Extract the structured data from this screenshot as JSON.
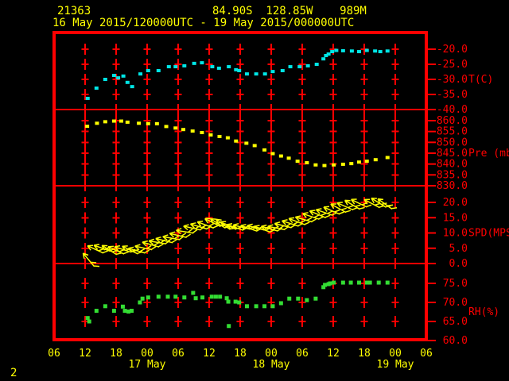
{
  "header": {
    "station_id": "21363",
    "location": "84.90S  128.85W    989M",
    "time_range": "16 May 2015/120000UTC - 19 May 2015/000000UTC"
  },
  "footer": {
    "page_number": "2"
  },
  "colors": {
    "background": "#000000",
    "frame": "#ff0000",
    "grid": "#ff0000",
    "axis_text": "#ff0000",
    "header_text": "#ffff00",
    "hour_text": "#ffff00"
  },
  "chart_data": {
    "type": "scatter",
    "title": "Radiosonde station meteogram 21363, 84.90S 128.85W 989M, 16 May 2015/120000UTC - 19 May 2015/000000UTC",
    "legend_position": "none",
    "grid": "plus-marks at 6-hour x gridlines and each y tick",
    "x_axis": {
      "description": "time, hours since 16 May 2015 06UTC",
      "domain_hours": [
        0,
        72
      ],
      "tick_step_hours": 6,
      "hour_labels": [
        "06",
        "12",
        "18",
        "00",
        "06",
        "12",
        "18",
        "00",
        "06",
        "12",
        "18",
        "00",
        "06"
      ],
      "date_labels": [
        {
          "label": "17 May",
          "t": 18
        },
        {
          "label": "18 May",
          "t": 42
        },
        {
          "label": "19 May",
          "t": 66
        }
      ]
    },
    "panels": [
      {
        "id": "temp",
        "ylabel": "T(C)",
        "color": "#00e6e6",
        "ylim": [
          -40,
          -20
        ],
        "ticks": [
          {
            "v": -20,
            "label": "-20.0"
          },
          {
            "v": -25,
            "label": "-25.0"
          },
          {
            "v": -30,
            "label": "-30.0"
          },
          {
            "v": -35,
            "label": "-35.0"
          },
          {
            "v": -40,
            "label": "-40.0"
          }
        ],
        "points": [
          [
            6.5,
            -36.3
          ],
          [
            8.2,
            -32.9
          ],
          [
            9.9,
            -30.0
          ],
          [
            11.6,
            -28.7
          ],
          [
            12.4,
            -29.5
          ],
          [
            13.4,
            -28.9
          ],
          [
            14.2,
            -31.0
          ],
          [
            15.1,
            -32.4
          ],
          [
            16.7,
            -28.2
          ],
          [
            18.2,
            -27.1
          ],
          [
            20.2,
            -27.1
          ],
          [
            22.2,
            -25.8
          ],
          [
            23.5,
            -25.8
          ],
          [
            25.2,
            -25.5
          ],
          [
            27.1,
            -24.7
          ],
          [
            28.6,
            -24.5
          ],
          [
            30.6,
            -25.8
          ],
          [
            31.9,
            -26.3
          ],
          [
            33.8,
            -25.8
          ],
          [
            35.2,
            -26.8
          ],
          [
            35.8,
            -27.1
          ],
          [
            37.3,
            -28.2
          ],
          [
            39.1,
            -28.2
          ],
          [
            40.8,
            -28.2
          ],
          [
            42.3,
            -27.4
          ],
          [
            44.2,
            -27.1
          ],
          [
            45.7,
            -25.8
          ],
          [
            47.5,
            -25.8
          ],
          [
            49.1,
            -25.5
          ],
          [
            50.8,
            -25.0
          ],
          [
            52.1,
            -23.2
          ],
          [
            52.6,
            -22.1
          ],
          [
            53.1,
            -21.6
          ],
          [
            53.8,
            -20.8
          ],
          [
            54.6,
            -20.4
          ],
          [
            55.9,
            -20.5
          ],
          [
            57.6,
            -20.6
          ],
          [
            59.0,
            -20.8
          ],
          [
            60.5,
            -20.4
          ],
          [
            62.1,
            -20.6
          ],
          [
            63.1,
            -20.8
          ],
          [
            64.5,
            -20.6
          ]
        ]
      },
      {
        "id": "pressure",
        "ylabel": "Pre (mb)",
        "color": "#ffff00",
        "ylim": [
          830,
          860
        ],
        "ticks": [
          {
            "v": 860,
            "label": "860.0"
          },
          {
            "v": 855,
            "label": "855.0"
          },
          {
            "v": 850,
            "label": "850.0"
          },
          {
            "v": 845,
            "label": "845.0"
          },
          {
            "v": 840,
            "label": "840.0"
          },
          {
            "v": 835,
            "label": "835.0"
          },
          {
            "v": 830,
            "label": "830.0"
          }
        ],
        "points": [
          [
            6.4,
            857.4
          ],
          [
            8.3,
            858.8
          ],
          [
            9.9,
            859.5
          ],
          [
            11.6,
            859.8
          ],
          [
            13.0,
            859.8
          ],
          [
            14.2,
            859.3
          ],
          [
            16.4,
            858.8
          ],
          [
            18.2,
            858.6
          ],
          [
            19.9,
            858.6
          ],
          [
            21.7,
            857.3
          ],
          [
            23.5,
            856.6
          ],
          [
            25.0,
            855.9
          ],
          [
            26.8,
            855.2
          ],
          [
            28.6,
            854.5
          ],
          [
            30.3,
            853.4
          ],
          [
            32.0,
            852.7
          ],
          [
            33.6,
            852.1
          ],
          [
            35.2,
            850.6
          ],
          [
            37.2,
            849.6
          ],
          [
            38.8,
            848.5
          ],
          [
            40.7,
            846.5
          ],
          [
            42.3,
            844.8
          ],
          [
            43.9,
            843.7
          ],
          [
            45.4,
            842.7
          ],
          [
            47.1,
            841.3
          ],
          [
            48.9,
            840.6
          ],
          [
            50.6,
            839.6
          ],
          [
            52.3,
            839.3
          ],
          [
            54.1,
            839.6
          ],
          [
            55.9,
            839.9
          ],
          [
            57.5,
            840.2
          ],
          [
            59.0,
            840.9
          ],
          [
            60.5,
            841.3
          ],
          [
            62.2,
            842.0
          ],
          [
            64.5,
            843.0
          ]
        ]
      },
      {
        "id": "wind",
        "ylabel": "SPD(MPS)",
        "color": "#ffff00",
        "ylim": [
          0,
          20
        ],
        "ticks": [
          {
            "v": 20,
            "label": "20.0"
          },
          {
            "v": 15,
            "label": "15.0"
          },
          {
            "v": 10,
            "label": "10.0"
          },
          {
            "v": 5,
            "label": "5.0"
          },
          {
            "v": 0,
            "label": "0.0"
          }
        ],
        "barbs": [
          [
            6.7,
            1.2,
            230
          ],
          [
            8,
            4.6,
            205
          ],
          [
            9.3,
            5,
            200
          ],
          [
            10.7,
            4.4,
            212
          ],
          [
            12,
            4.3,
            205
          ],
          [
            13.3,
            4.6,
            198
          ],
          [
            14.7,
            4.4,
            206
          ],
          [
            16,
            4.2,
            196
          ],
          [
            17.3,
            5.1,
            192
          ],
          [
            18.7,
            6.2,
            196
          ],
          [
            20,
            6.9,
            190
          ],
          [
            21.3,
            7.5,
            194
          ],
          [
            22.7,
            8.3,
            190
          ],
          [
            24,
            9.2,
            193
          ],
          [
            25.3,
            10.4,
            189
          ],
          [
            26.7,
            11.6,
            193
          ],
          [
            28,
            12.1,
            197
          ],
          [
            29.3,
            12.6,
            201
          ],
          [
            30.7,
            13.4,
            207
          ],
          [
            31.7,
            13.1,
            212
          ],
          [
            32.7,
            12.8,
            216
          ],
          [
            33.7,
            12.4,
            206
          ],
          [
            35,
            11.8,
            199
          ],
          [
            36.3,
            11.9,
            194
          ],
          [
            37.7,
            11.5,
            199
          ],
          [
            39,
            11.7,
            195
          ],
          [
            40.3,
            11.2,
            200
          ],
          [
            41.7,
            11.4,
            196
          ],
          [
            43,
            11.6,
            191
          ],
          [
            44.3,
            12.4,
            194
          ],
          [
            45.7,
            13.1,
            198
          ],
          [
            47,
            13.7,
            201
          ],
          [
            48.3,
            14.4,
            196
          ],
          [
            49.7,
            15.4,
            199
          ],
          [
            51,
            16.1,
            203
          ],
          [
            52.3,
            16.7,
            199
          ],
          [
            53.7,
            17.3,
            204
          ],
          [
            55,
            18.1,
            209
          ],
          [
            56.3,
            18.7,
            204
          ],
          [
            57.7,
            19.2,
            211
          ],
          [
            59,
            19.7,
            206
          ],
          [
            61.5,
            19.6,
            208
          ],
          [
            62.8,
            19.9,
            212
          ],
          [
            64,
            19.5,
            216
          ]
        ]
      },
      {
        "id": "rh",
        "ylabel": "RH(%)",
        "color": "#33dd33",
        "ylim": [
          60,
          75
        ],
        "ticks": [
          {
            "v": 75,
            "label": "75.0"
          },
          {
            "v": 70,
            "label": "70.0"
          },
          {
            "v": 65,
            "label": "65.0"
          },
          {
            "v": 60,
            "label": "60.0"
          }
        ],
        "points": [
          [
            6.5,
            65.9
          ],
          [
            6.8,
            65.0
          ],
          [
            8.2,
            67.8
          ],
          [
            9.9,
            69.0
          ],
          [
            11.6,
            67.8
          ],
          [
            13.3,
            68.9
          ],
          [
            13.7,
            67.8
          ],
          [
            14.4,
            67.6
          ],
          [
            15.0,
            67.8
          ],
          [
            16.6,
            70.0
          ],
          [
            17.1,
            71.0
          ],
          [
            18.2,
            71.3
          ],
          [
            20.2,
            71.5
          ],
          [
            22.0,
            71.5
          ],
          [
            23.5,
            71.5
          ],
          [
            25.2,
            71.3
          ],
          [
            26.9,
            72.5
          ],
          [
            27.4,
            71.1
          ],
          [
            28.7,
            71.3
          ],
          [
            30.5,
            71.5
          ],
          [
            31.3,
            71.5
          ],
          [
            32.1,
            71.5
          ],
          [
            33.4,
            71.1
          ],
          [
            33.7,
            70.2
          ],
          [
            33.8,
            63.8
          ],
          [
            35.1,
            70.2
          ],
          [
            35.8,
            70.0
          ],
          [
            37.3,
            69.0
          ],
          [
            39.1,
            69.0
          ],
          [
            40.7,
            69.0
          ],
          [
            42.3,
            69.0
          ],
          [
            43.9,
            69.8
          ],
          [
            45.5,
            71.0
          ],
          [
            47.2,
            71.0
          ],
          [
            48.9,
            70.6
          ],
          [
            50.6,
            71.0
          ],
          [
            52.1,
            74.0
          ],
          [
            52.4,
            74.6
          ],
          [
            53.1,
            74.8
          ],
          [
            53.4,
            75.0
          ],
          [
            54.1,
            75.2
          ],
          [
            55.9,
            75.2
          ],
          [
            57.4,
            75.2
          ],
          [
            59.0,
            75.2
          ],
          [
            60.5,
            75.2
          ],
          [
            61.1,
            75.2
          ],
          [
            62.8,
            75.2
          ],
          [
            64.5,
            75.2
          ]
        ]
      }
    ]
  }
}
